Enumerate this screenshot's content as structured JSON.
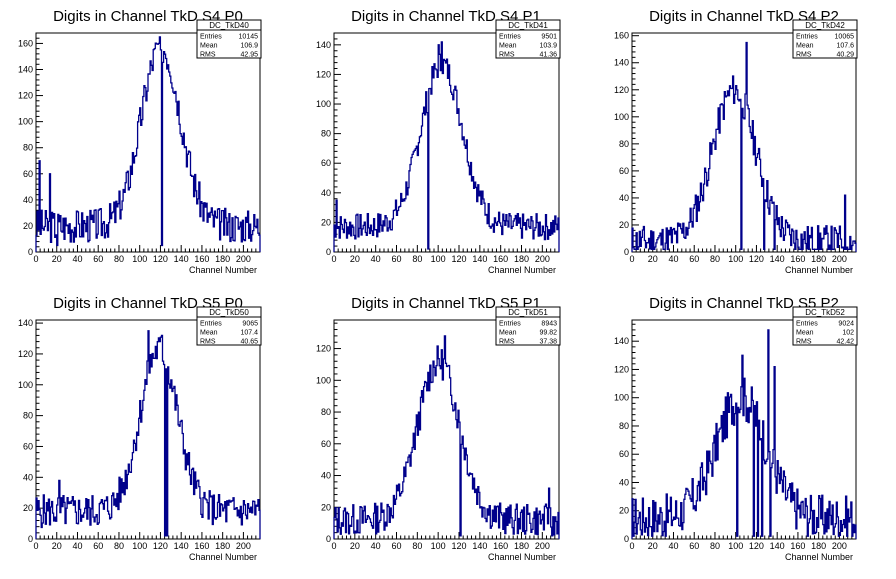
{
  "chart_data": [
    {
      "type": "histogram",
      "title": "Digits in Channel TkD S4 P0",
      "xlabel": "Channel Number",
      "ylabel": "",
      "xlim": [
        0,
        216
      ],
      "ylim": [
        0,
        168
      ],
      "xticks": [
        0,
        20,
        40,
        60,
        80,
        100,
        120,
        140,
        160,
        180,
        200
      ],
      "yticks": [
        0,
        20,
        40,
        60,
        80,
        100,
        120,
        140,
        160
      ],
      "color": "#00008B",
      "stats": {
        "name": "DC_TkD40",
        "rows": [
          {
            "label": "Entries",
            "value": "10145"
          },
          {
            "label": "Mean",
            "value": "106.9"
          },
          {
            "label": "RMS",
            "value": "42.95"
          }
        ]
      },
      "shape": {
        "peak": 120,
        "sigma": 19,
        "height": 138,
        "base": 20,
        "noise": 13,
        "seed": 3
      },
      "spikes": [
        [
          3,
          70
        ],
        [
          13,
          60
        ],
        [
          20,
          5
        ],
        [
          118,
          160
        ],
        [
          120,
          155
        ],
        [
          121,
          5
        ]
      ]
    },
    {
      "type": "histogram",
      "title": "Digits in Channel TkD S4 P1",
      "xlabel": "Channel Number",
      "ylabel": "",
      "xlim": [
        0,
        216
      ],
      "ylim": [
        0,
        148
      ],
      "xticks": [
        0,
        20,
        40,
        60,
        80,
        100,
        120,
        140,
        160,
        180,
        200
      ],
      "yticks": [
        0,
        20,
        40,
        60,
        80,
        100,
        120,
        140
      ],
      "color": "#00008B",
      "stats": {
        "name": "DC_TkD41",
        "rows": [
          {
            "label": "Entries",
            "value": "9501"
          },
          {
            "label": "Mean",
            "value": "103.9"
          },
          {
            "label": "RMS",
            "value": "41.36"
          }
        ]
      },
      "shape": {
        "peak": 103,
        "sigma": 20,
        "height": 110,
        "base": 17,
        "noise": 9,
        "seed": 7
      },
      "spikes": [
        [
          2,
          35
        ],
        [
          90,
          2
        ],
        [
          100,
          140
        ],
        [
          103,
          142
        ]
      ]
    },
    {
      "type": "histogram",
      "title": "Digits in Channel TkD S4 P2",
      "xlabel": "Channel Number",
      "ylabel": "",
      "xlim": [
        0,
        216
      ],
      "ylim": [
        0,
        162
      ],
      "xticks": [
        0,
        20,
        40,
        60,
        80,
        100,
        120,
        140,
        160,
        180,
        200
      ],
      "yticks": [
        0,
        20,
        40,
        60,
        80,
        100,
        120,
        140,
        160
      ],
      "color": "#00008B",
      "stats": {
        "name": "DC_TkD42",
        "rows": [
          {
            "label": "Entries",
            "value": "10065"
          },
          {
            "label": "Mean",
            "value": "107.6"
          },
          {
            "label": "RMS",
            "value": "40.29"
          }
        ]
      },
      "shape": {
        "peak": 98,
        "sigma": 21,
        "height": 112,
        "base": 8,
        "noise": 12,
        "seed": 11
      },
      "spikes": [
        [
          105,
          2
        ],
        [
          110,
          155
        ],
        [
          127,
          2
        ],
        [
          137,
          2
        ],
        [
          205,
          42
        ],
        [
          211,
          2
        ]
      ]
    },
    {
      "type": "histogram",
      "title": "Digits in Channel TkD S5 P0",
      "xlabel": "Channel Number",
      "ylabel": "",
      "xlim": [
        0,
        216
      ],
      "ylim": [
        0,
        142
      ],
      "xticks": [
        0,
        20,
        40,
        60,
        80,
        100,
        120,
        140,
        160,
        180,
        200
      ],
      "yticks": [
        0,
        20,
        40,
        60,
        80,
        100,
        120,
        140
      ],
      "color": "#00008B",
      "stats": {
        "name": "DC_TkD50",
        "rows": [
          {
            "label": "Entries",
            "value": "9065"
          },
          {
            "label": "Mean",
            "value": "107.4"
          },
          {
            "label": "RMS",
            "value": "40.65"
          }
        ]
      },
      "shape": {
        "peak": 118,
        "sigma": 18,
        "height": 105,
        "base": 18,
        "noise": 11,
        "seed": 5
      },
      "spikes": [
        [
          22,
          38
        ],
        [
          108,
          135
        ],
        [
          121,
          132
        ],
        [
          124,
          2
        ],
        [
          126,
          2
        ]
      ]
    },
    {
      "type": "histogram",
      "title": "Digits in Channel TkD S5 P1",
      "xlabel": "Channel Number",
      "ylabel": "",
      "xlim": [
        0,
        216
      ],
      "ylim": [
        0,
        138
      ],
      "xticks": [
        0,
        20,
        40,
        60,
        80,
        100,
        120,
        140,
        160,
        180,
        200
      ],
      "yticks": [
        0,
        20,
        40,
        60,
        80,
        100,
        120
      ],
      "color": "#00008B",
      "stats": {
        "name": "DC_TkD51",
        "rows": [
          {
            "label": "Entries",
            "value": "8943"
          },
          {
            "label": "Mean",
            "value": "99.82"
          },
          {
            "label": "RMS",
            "value": "37.38"
          }
        ]
      },
      "shape": {
        "peak": 100,
        "sigma": 20,
        "height": 100,
        "base": 12,
        "noise": 10,
        "seed": 13
      },
      "spikes": [
        [
          106,
          128
        ],
        [
          121,
          2
        ],
        [
          206,
          32
        ],
        [
          209,
          2
        ]
      ]
    },
    {
      "type": "histogram",
      "title": "Digits in Channel TkD S5 P2",
      "xlabel": "Channel Number",
      "ylabel": "",
      "xlim": [
        0,
        216
      ],
      "ylim": [
        0,
        155
      ],
      "xticks": [
        0,
        20,
        40,
        60,
        80,
        100,
        120,
        140,
        160,
        180,
        200
      ],
      "yticks": [
        0,
        20,
        40,
        60,
        80,
        100,
        120,
        140
      ],
      "color": "#00008B",
      "stats": {
        "name": "DC_TkD52",
        "rows": [
          {
            "label": "Entries",
            "value": "9024"
          },
          {
            "label": "Mean",
            "value": "102"
          },
          {
            "label": "RMS",
            "value": "42.42"
          }
        ]
      },
      "shape": {
        "peak": 105,
        "sigma": 24,
        "height": 85,
        "base": 15,
        "noise": 16,
        "seed": 17
      },
      "spikes": [
        [
          101,
          2
        ],
        [
          106,
          130
        ],
        [
          117,
          2
        ],
        [
          121,
          2
        ],
        [
          125,
          2
        ],
        [
          131,
          148
        ],
        [
          133,
          2
        ],
        [
          137,
          122
        ]
      ]
    }
  ]
}
